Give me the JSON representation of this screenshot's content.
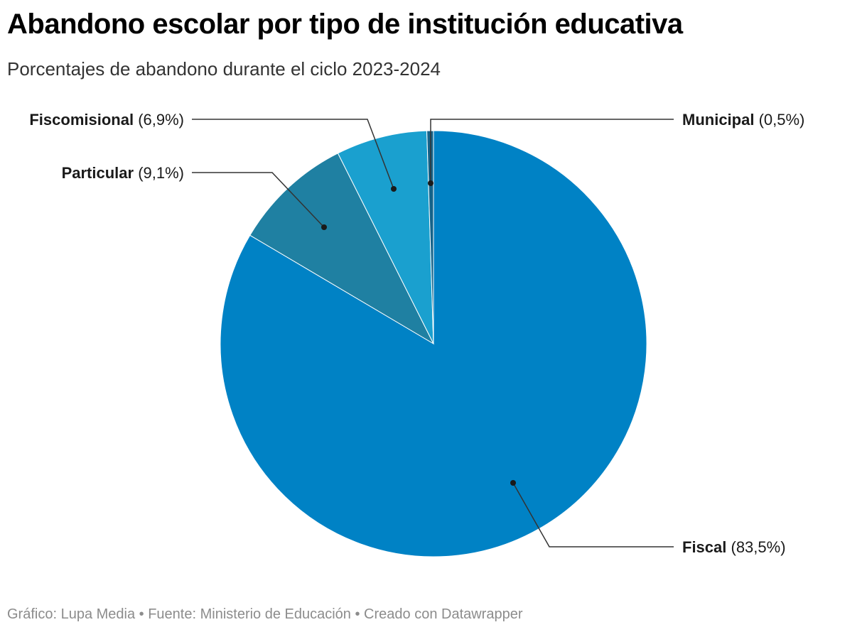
{
  "header": {
    "title": "Abandono escolar por tipo de institución educativa",
    "subtitle": "Porcentajes de abandono durante el ciclo 2023-2024"
  },
  "footer": {
    "text": "Gráfico: Lupa Media • Fuente: Ministerio de Educación • Creado con Datawrapper"
  },
  "chart_data": {
    "type": "pie",
    "title": "Abandono escolar por tipo de institución educativa",
    "subtitle": "Porcentajes de abandono durante el ciclo 2023-2024",
    "slices": [
      {
        "name": "Fiscal",
        "value": 83.5,
        "value_label": "(83,5%)",
        "color": "#0082c5"
      },
      {
        "name": "Particular",
        "value": 9.1,
        "value_label": "(9,1%)",
        "color": "#1f80a2"
      },
      {
        "name": "Fiscomisional",
        "value": 6.9,
        "value_label": "(6,9%)",
        "color": "#1aa0cf"
      },
      {
        "name": "Municipal",
        "value": 0.5,
        "value_label": "(0,5%)",
        "color": "#14638a"
      }
    ],
    "start_angle": "12 o'clock, clockwise",
    "legend": "none (direct labels with leader lines)"
  }
}
